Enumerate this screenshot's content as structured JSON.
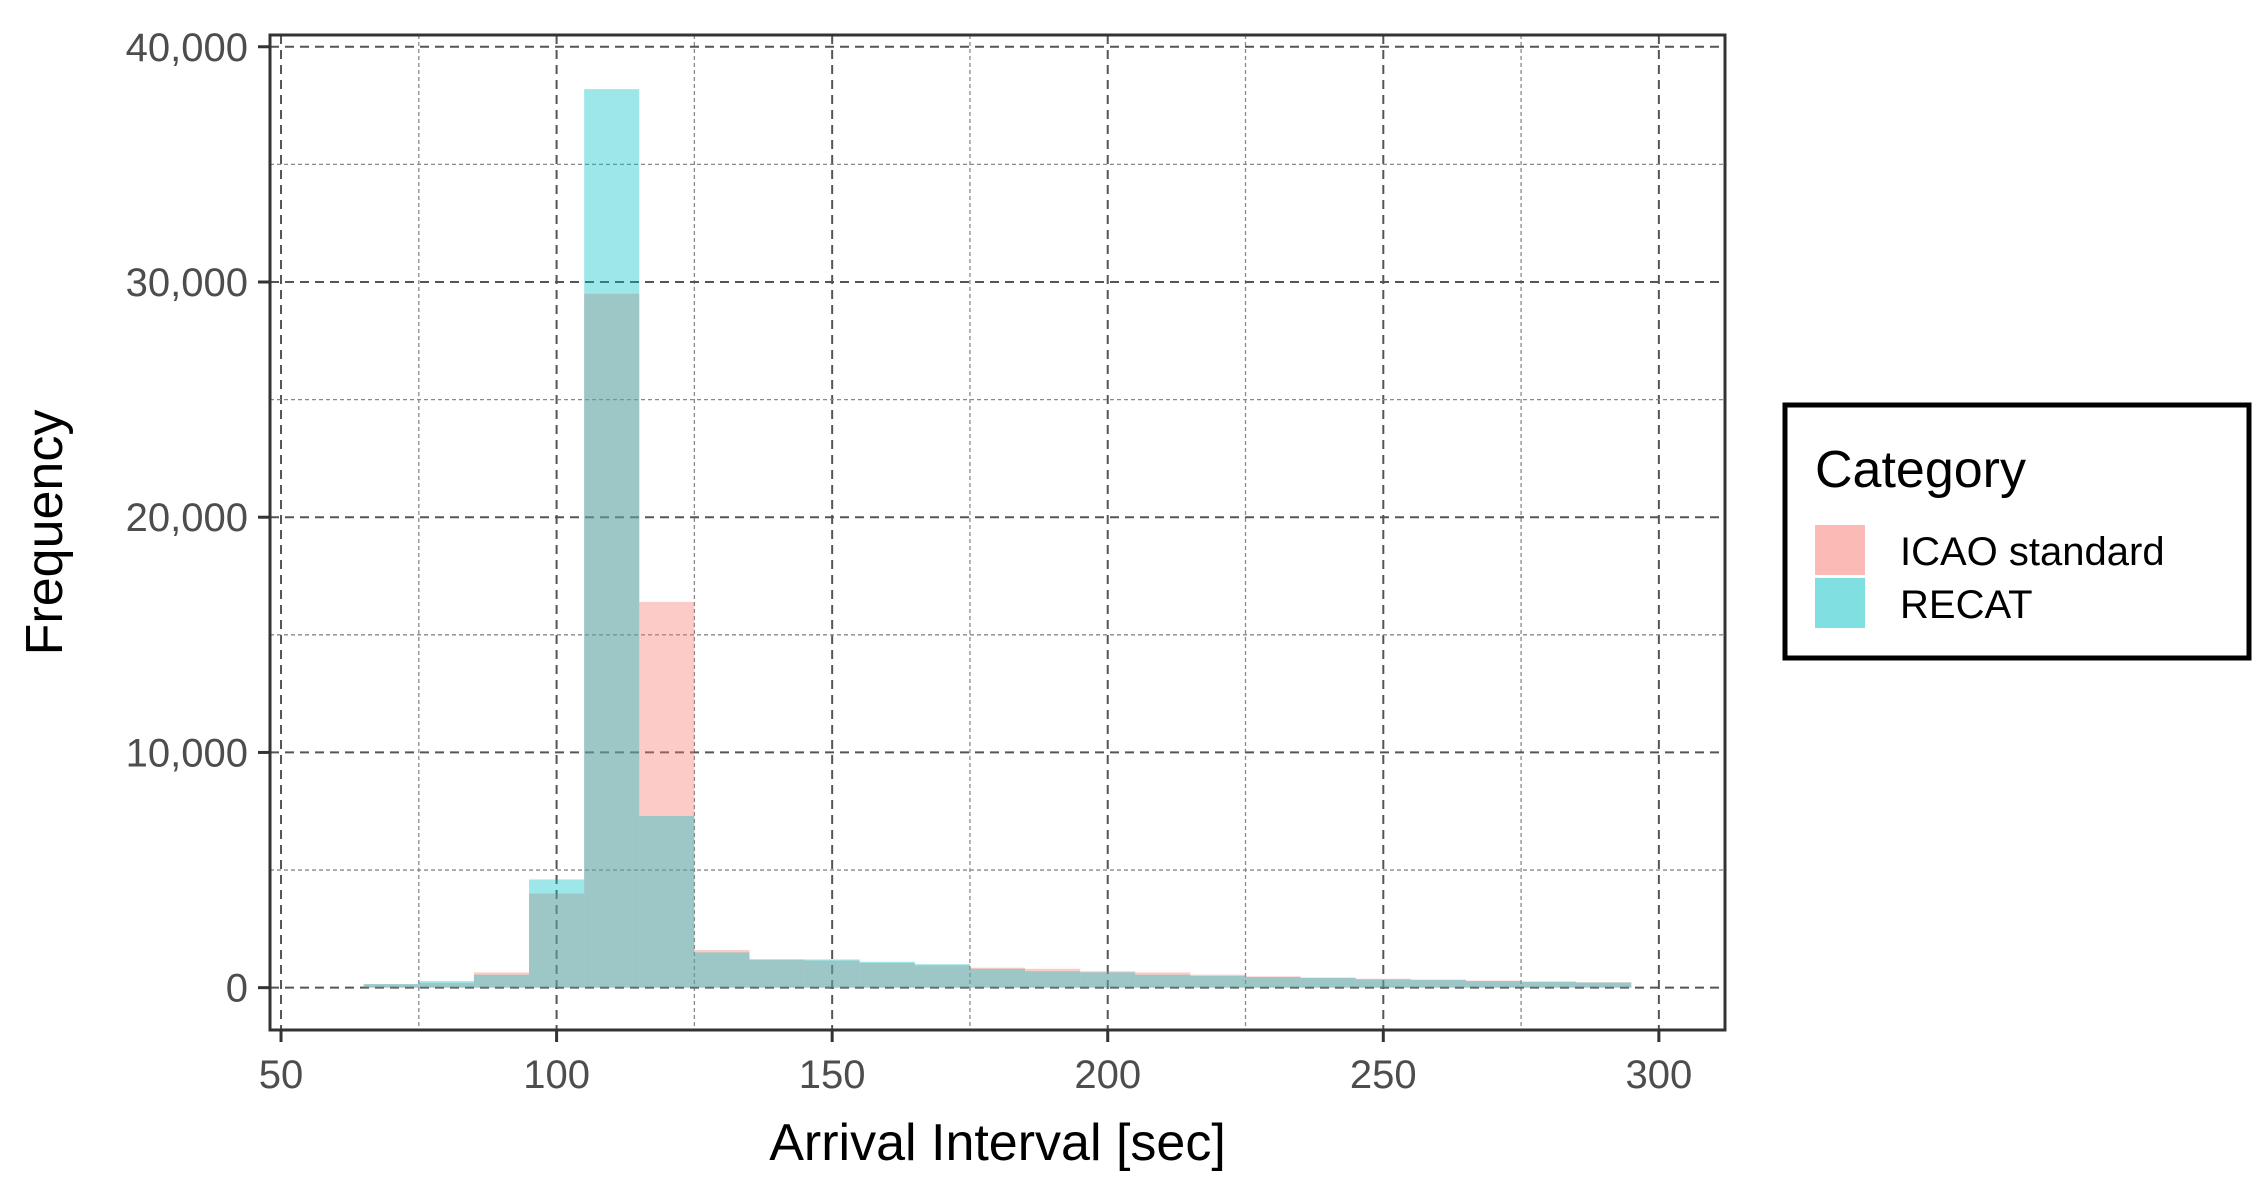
{
  "chart_data": {
    "type": "bar",
    "xlabel": "Arrival Interval [sec]",
    "ylabel": "Frequency",
    "xlim": [
      48,
      312
    ],
    "ylim": [
      -1800,
      40500
    ],
    "x_ticks": [
      50,
      100,
      150,
      200,
      250,
      300
    ],
    "x_tick_labels": [
      "50",
      "100",
      "150",
      "200",
      "250",
      "300"
    ],
    "y_ticks": [
      0,
      10000,
      20000,
      30000,
      40000
    ],
    "y_tick_labels": [
      "0",
      "10,000",
      "20,000",
      "30,000",
      "40,000"
    ],
    "bin_width": 10,
    "bin_centers": [
      70,
      80,
      90,
      100,
      110,
      120,
      130,
      140,
      150,
      160,
      170,
      180,
      190,
      200,
      210,
      220,
      230,
      240,
      250,
      260,
      270,
      280,
      290
    ],
    "series": [
      {
        "name": "ICAO standard",
        "color": "#F8766D",
        "values": [
          150,
          200,
          650,
          4000,
          29500,
          16400,
          1600,
          1200,
          1150,
          1050,
          950,
          850,
          800,
          700,
          650,
          550,
          480,
          420,
          380,
          340,
          300,
          260,
          230
        ]
      },
      {
        "name": "RECAT",
        "color": "#00BFC4",
        "values": [
          150,
          280,
          550,
          4600,
          38200,
          7300,
          1500,
          1200,
          1200,
          1100,
          1000,
          800,
          700,
          650,
          550,
          500,
          450,
          420,
          350,
          330,
          280,
          250,
          220
        ]
      }
    ],
    "grid": true,
    "legend": {
      "title": "Category",
      "position": "right",
      "items": [
        "ICAO standard",
        "RECAT"
      ]
    },
    "colors": {
      "ICAO standard": "#F8766D",
      "RECAT": "#00BFC4",
      "overlap": "#A6B8B2"
    }
  }
}
